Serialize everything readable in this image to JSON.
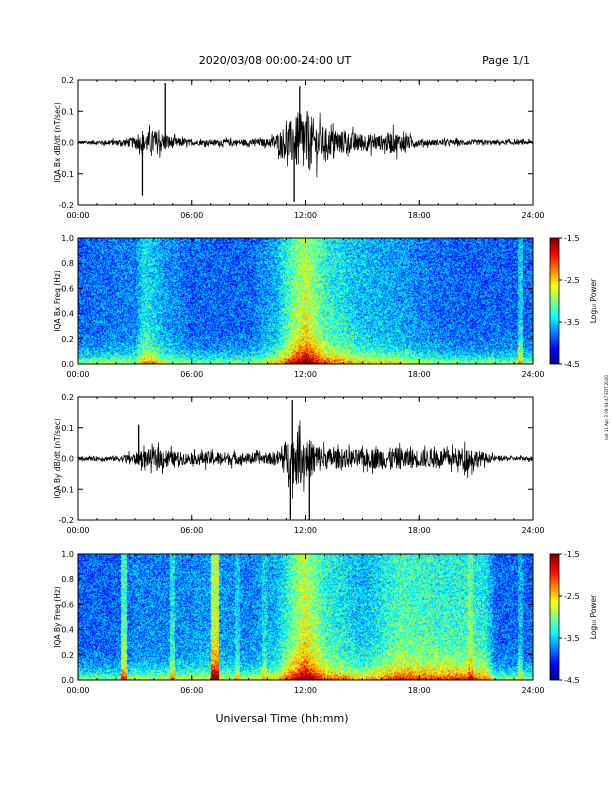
{
  "header": {
    "title": "2020/03/08  00:00-24:00 UT",
    "page": "Page 1/1"
  },
  "side_note": "not 11 Apr 3 09:04:47 EDT 2020",
  "chart_data": [
    {
      "type": "line",
      "ylabel": "IQA Bx dB/dt (nT/sec)",
      "ylim": [
        -0.2,
        0.2
      ],
      "yticks": [
        "0.2",
        "0.1",
        "0.0",
        "-0.1",
        "-0.2"
      ],
      "xlim_hours": [
        0,
        24
      ],
      "xticks": [
        "00:00",
        "06:00",
        "12:00",
        "18:00",
        "24:00"
      ],
      "envelope_hours": [
        0,
        1,
        2,
        3,
        4,
        4.5,
        5,
        6,
        7,
        8,
        9,
        10,
        10.5,
        11,
        11.5,
        12,
        12.5,
        13,
        14,
        15,
        16,
        16.5,
        17,
        18,
        19,
        20,
        21,
        22,
        23,
        24
      ],
      "envelope_amplitude": [
        0.01,
        0.012,
        0.015,
        0.03,
        0.07,
        0.05,
        0.03,
        0.015,
        0.015,
        0.018,
        0.018,
        0.02,
        0.05,
        0.1,
        0.14,
        0.18,
        0.12,
        0.08,
        0.06,
        0.05,
        0.04,
        0.06,
        0.05,
        0.02,
        0.015,
        0.015,
        0.015,
        0.012,
        0.012,
        0.012
      ],
      "spikes": [
        {
          "hour": 3.4,
          "value": -0.17
        },
        {
          "hour": 4.6,
          "value": 0.19
        },
        {
          "hour": 11.4,
          "value": -0.19
        },
        {
          "hour": 11.7,
          "value": 0.18
        }
      ]
    },
    {
      "type": "heatmap",
      "ylabel": "IQA Bx Freq (Hz)",
      "ylim": [
        0.0,
        1.0
      ],
      "yticks": [
        "1.0",
        "0.8",
        "0.6",
        "0.4",
        "0.2",
        "0.0"
      ],
      "xlim_hours": [
        0,
        24
      ],
      "xticks": [
        "00:00",
        "06:00",
        "12:00",
        "18:00",
        "24:00"
      ],
      "colorbar": {
        "label": "Log₁₀ Power",
        "ticks": [
          "-1.5",
          "-2.5",
          "-3.5",
          "-4.5"
        ],
        "range": [
          -4.5,
          -1.5
        ]
      },
      "activity_hours": [
        0,
        3,
        3.5,
        4.5,
        6,
        9,
        10.5,
        11.5,
        12,
        13,
        15,
        17,
        18,
        20,
        22,
        24
      ],
      "activity_level": [
        0.3,
        0.35,
        0.55,
        0.4,
        0.3,
        0.3,
        0.45,
        0.75,
        0.85,
        0.6,
        0.45,
        0.4,
        0.35,
        0.3,
        0.3,
        0.3
      ],
      "vertical_bands": [
        {
          "hour": 23.3,
          "strength": 0.5
        }
      ]
    },
    {
      "type": "line",
      "ylabel": "IQA By dB/dt (nT/sec)",
      "ylim": [
        -0.2,
        0.2
      ],
      "yticks": [
        "0.2",
        "0.1",
        "0.0",
        "-0.1",
        "-0.2"
      ],
      "xlim_hours": [
        0,
        24
      ],
      "xticks": [
        "00:00",
        "06:00",
        "12:00",
        "18:00",
        "24:00"
      ],
      "envelope_hours": [
        0,
        1,
        2,
        3,
        3.5,
        4,
        4.5,
        5,
        6,
        7,
        8,
        9,
        10,
        10.5,
        11,
        11.5,
        12,
        12.5,
        13,
        14,
        15,
        16,
        17,
        18,
        19,
        20,
        20.5,
        21,
        21.5,
        22,
        23,
        24
      ],
      "envelope_amplitude": [
        0.01,
        0.012,
        0.015,
        0.03,
        0.05,
        0.05,
        0.06,
        0.04,
        0.03,
        0.04,
        0.035,
        0.03,
        0.03,
        0.04,
        0.1,
        0.15,
        0.12,
        0.09,
        0.06,
        0.05,
        0.05,
        0.06,
        0.06,
        0.05,
        0.05,
        0.05,
        0.07,
        0.05,
        0.03,
        0.015,
        0.012,
        0.012
      ],
      "spikes": [
        {
          "hour": 3.2,
          "value": 0.11
        },
        {
          "hour": 11.3,
          "value": 0.19
        },
        {
          "hour": 11.2,
          "value": -0.2
        },
        {
          "hour": 12.2,
          "value": -0.2
        }
      ]
    },
    {
      "type": "heatmap",
      "ylabel": "IQA By Freq (Hz)",
      "ylim": [
        0.0,
        1.0
      ],
      "yticks": [
        "1.0",
        "0.8",
        "0.6",
        "0.4",
        "0.2",
        "0.0"
      ],
      "xlim_hours": [
        0,
        24
      ],
      "xticks": [
        "00:00",
        "06:00",
        "12:00",
        "18:00",
        "24:00"
      ],
      "xlabel": "Universal Time (hh:mm)",
      "colorbar": {
        "label": "Log₁₀ Power",
        "ticks": [
          "-1.5",
          "-2.5",
          "-3.5",
          "-4.5"
        ],
        "range": [
          -4.5,
          -1.5
        ]
      },
      "activity_hours": [
        0,
        2,
        3,
        5,
        7,
        9,
        10.5,
        11.5,
        12,
        13,
        15,
        16,
        17,
        19,
        20.5,
        21.5,
        22,
        24
      ],
      "activity_level": [
        0.3,
        0.3,
        0.35,
        0.35,
        0.4,
        0.35,
        0.45,
        0.75,
        0.85,
        0.6,
        0.45,
        0.55,
        0.65,
        0.6,
        0.6,
        0.55,
        0.3,
        0.3
      ],
      "vertical_bands": [
        {
          "hour": 2.4,
          "strength": 0.65
        },
        {
          "hour": 4.95,
          "strength": 0.55
        },
        {
          "hour": 7.1,
          "strength": 0.85
        },
        {
          "hour": 7.3,
          "strength": 0.85
        },
        {
          "hour": 8.4,
          "strength": 0.5
        },
        {
          "hour": 9.8,
          "strength": 0.5
        },
        {
          "hour": 20.7,
          "strength": 0.7
        },
        {
          "hour": 21.3,
          "strength": 0.55
        },
        {
          "hour": 23.3,
          "strength": 0.45
        }
      ]
    }
  ]
}
